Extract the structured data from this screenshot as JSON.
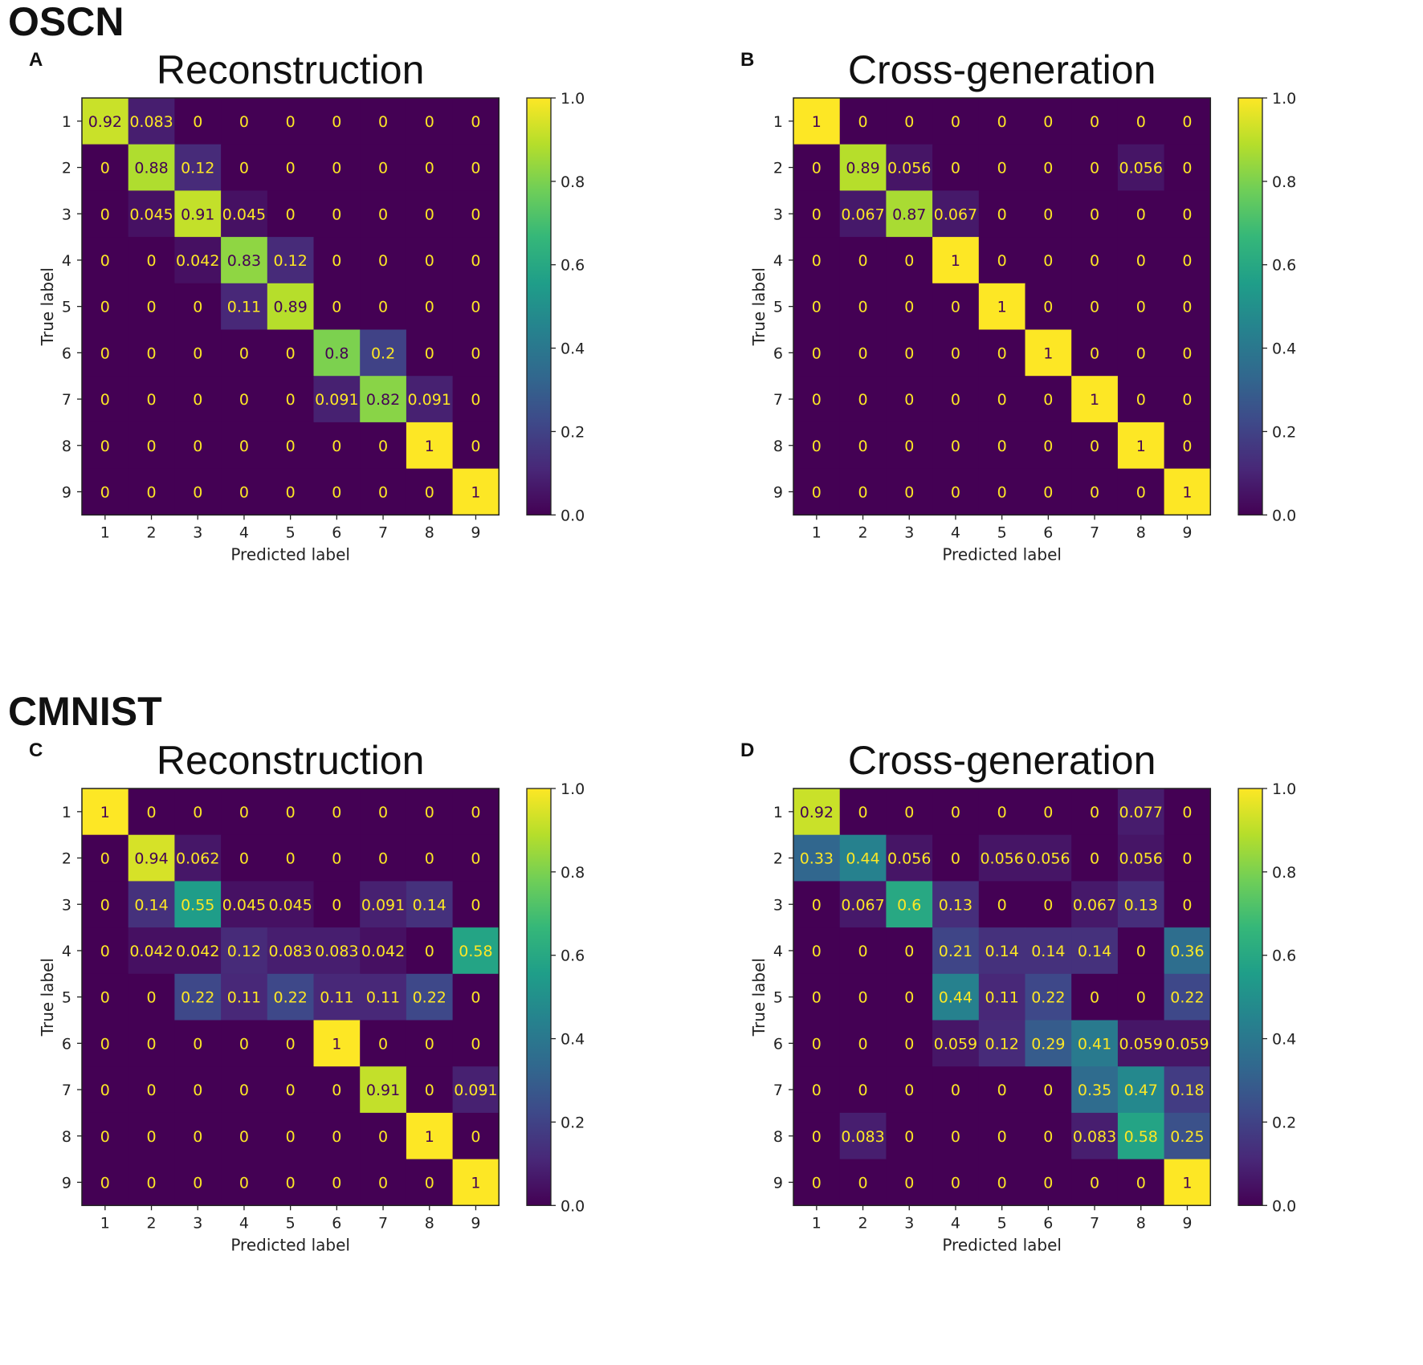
{
  "sections": [
    {
      "id": "oscn",
      "title": "OSCN"
    },
    {
      "id": "cmnist",
      "title": "CMNIST"
    }
  ],
  "colorbar": {
    "ticks": [
      "0.0",
      "0.2",
      "0.4",
      "0.6",
      "0.8",
      "1.0"
    ],
    "colors": [
      "#440154",
      "#482878",
      "#3e4989",
      "#31688e",
      "#26828e",
      "#1f9e89",
      "#35b779",
      "#6ece58",
      "#b5de2b",
      "#fde725"
    ]
  },
  "chart_data": [
    {
      "type": "heatmap",
      "panel": "A",
      "section": "OSCN",
      "title": "Reconstruction",
      "xlabel": "Predicted label",
      "ylabel": "True label",
      "x_categories": [
        "1",
        "2",
        "3",
        "4",
        "5",
        "6",
        "7",
        "8",
        "9"
      ],
      "y_categories": [
        "1",
        "2",
        "3",
        "4",
        "5",
        "6",
        "7",
        "8",
        "9"
      ],
      "vmin": 0,
      "vmax": 1,
      "cells": [
        [
          "0.92",
          "0.083",
          "0",
          "0",
          "0",
          "0",
          "0",
          "0",
          "0"
        ],
        [
          "0",
          "0.88",
          "0.12",
          "0",
          "0",
          "0",
          "0",
          "0",
          "0"
        ],
        [
          "0",
          "0.045",
          "0.91",
          "0.045",
          "0",
          "0",
          "0",
          "0",
          "0"
        ],
        [
          "0",
          "0",
          "0.042",
          "0.83",
          "0.12",
          "0",
          "0",
          "0",
          "0"
        ],
        [
          "0",
          "0",
          "0",
          "0.11",
          "0.89",
          "0",
          "0",
          "0",
          "0"
        ],
        [
          "0",
          "0",
          "0",
          "0",
          "0",
          "0.8",
          "0.2",
          "0",
          "0"
        ],
        [
          "0",
          "0",
          "0",
          "0",
          "0",
          "0.091",
          "0.82",
          "0.091",
          "0"
        ],
        [
          "0",
          "0",
          "0",
          "0",
          "0",
          "0",
          "0",
          "1",
          "0"
        ],
        [
          "0",
          "0",
          "0",
          "0",
          "0",
          "0",
          "0",
          "0",
          "1"
        ]
      ]
    },
    {
      "type": "heatmap",
      "panel": "B",
      "section": "OSCN",
      "title": "Cross-generation",
      "xlabel": "Predicted label",
      "ylabel": "True label",
      "x_categories": [
        "1",
        "2",
        "3",
        "4",
        "5",
        "6",
        "7",
        "8",
        "9"
      ],
      "y_categories": [
        "1",
        "2",
        "3",
        "4",
        "5",
        "6",
        "7",
        "8",
        "9"
      ],
      "vmin": 0,
      "vmax": 1,
      "cells": [
        [
          "1",
          "0",
          "0",
          "0",
          "0",
          "0",
          "0",
          "0",
          "0"
        ],
        [
          "0",
          "0.89",
          "0.056",
          "0",
          "0",
          "0",
          "0",
          "0.056",
          "0"
        ],
        [
          "0",
          "0.067",
          "0.87",
          "0.067",
          "0",
          "0",
          "0",
          "0",
          "0"
        ],
        [
          "0",
          "0",
          "0",
          "1",
          "0",
          "0",
          "0",
          "0",
          "0"
        ],
        [
          "0",
          "0",
          "0",
          "0",
          "1",
          "0",
          "0",
          "0",
          "0"
        ],
        [
          "0",
          "0",
          "0",
          "0",
          "0",
          "1",
          "0",
          "0",
          "0"
        ],
        [
          "0",
          "0",
          "0",
          "0",
          "0",
          "0",
          "1",
          "0",
          "0"
        ],
        [
          "0",
          "0",
          "0",
          "0",
          "0",
          "0",
          "0",
          "1",
          "0"
        ],
        [
          "0",
          "0",
          "0",
          "0",
          "0",
          "0",
          "0",
          "0",
          "1"
        ]
      ]
    },
    {
      "type": "heatmap",
      "panel": "C",
      "section": "CMNIST",
      "title": "Reconstruction",
      "xlabel": "Predicted label",
      "ylabel": "True label",
      "x_categories": [
        "1",
        "2",
        "3",
        "4",
        "5",
        "6",
        "7",
        "8",
        "9"
      ],
      "y_categories": [
        "1",
        "2",
        "3",
        "4",
        "5",
        "6",
        "7",
        "8",
        "9"
      ],
      "vmin": 0,
      "vmax": 1,
      "cells": [
        [
          "1",
          "0",
          "0",
          "0",
          "0",
          "0",
          "0",
          "0",
          "0"
        ],
        [
          "0",
          "0.94",
          "0.062",
          "0",
          "0",
          "0",
          "0",
          "0",
          "0"
        ],
        [
          "0",
          "0.14",
          "0.55",
          "0.045",
          "0.045",
          "0",
          "0.091",
          "0.14",
          "0"
        ],
        [
          "0",
          "0.042",
          "0.042",
          "0.12",
          "0.083",
          "0.083",
          "0.042",
          "0",
          "0.58"
        ],
        [
          "0",
          "0",
          "0.22",
          "0.11",
          "0.22",
          "0.11",
          "0.11",
          "0.22",
          "0"
        ],
        [
          "0",
          "0",
          "0",
          "0",
          "0",
          "1",
          "0",
          "0",
          "0"
        ],
        [
          "0",
          "0",
          "0",
          "0",
          "0",
          "0",
          "0.91",
          "0",
          "0.091"
        ],
        [
          "0",
          "0",
          "0",
          "0",
          "0",
          "0",
          "0",
          "1",
          "0"
        ],
        [
          "0",
          "0",
          "0",
          "0",
          "0",
          "0",
          "0",
          "0",
          "1"
        ]
      ]
    },
    {
      "type": "heatmap",
      "panel": "D",
      "section": "CMNIST",
      "title": "Cross-generation",
      "xlabel": "Predicted label",
      "ylabel": "True label",
      "x_categories": [
        "1",
        "2",
        "3",
        "4",
        "5",
        "6",
        "7",
        "8",
        "9"
      ],
      "y_categories": [
        "1",
        "2",
        "3",
        "4",
        "5",
        "6",
        "7",
        "8",
        "9"
      ],
      "vmin": 0,
      "vmax": 1,
      "cells": [
        [
          "0.92",
          "0",
          "0",
          "0",
          "0",
          "0",
          "0",
          "0.077",
          "0"
        ],
        [
          "0.33",
          "0.44",
          "0.056",
          "0",
          "0.056",
          "0.056",
          "0",
          "0.056",
          "0"
        ],
        [
          "0",
          "0.067",
          "0.6",
          "0.13",
          "0",
          "0",
          "0.067",
          "0.13",
          "0"
        ],
        [
          "0",
          "0",
          "0",
          "0.21",
          "0.14",
          "0.14",
          "0.14",
          "0",
          "0.36"
        ],
        [
          "0",
          "0",
          "0",
          "0.44",
          "0.11",
          "0.22",
          "0",
          "0",
          "0.22"
        ],
        [
          "0",
          "0",
          "0",
          "0.059",
          "0.12",
          "0.29",
          "0.41",
          "0.059",
          "0.059"
        ],
        [
          "0",
          "0",
          "0",
          "0",
          "0",
          "0",
          "0.35",
          "0.47",
          "0.18"
        ],
        [
          "0",
          "0.083",
          "0",
          "0",
          "0",
          "0",
          "0.083",
          "0.58",
          "0.25"
        ],
        [
          "0",
          "0",
          "0",
          "0",
          "0",
          "0",
          "0",
          "0",
          "1"
        ]
      ]
    }
  ]
}
